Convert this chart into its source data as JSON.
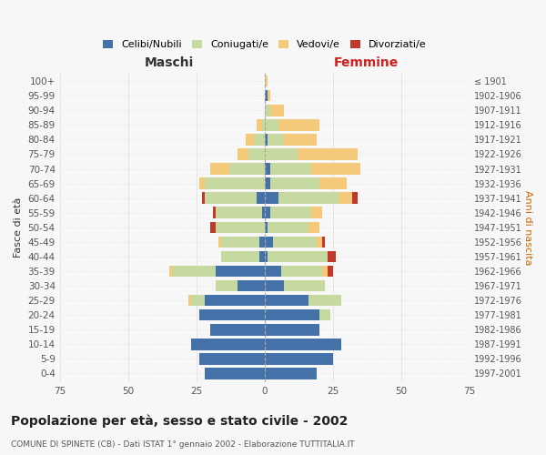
{
  "age_groups": [
    "0-4",
    "5-9",
    "10-14",
    "15-19",
    "20-24",
    "25-29",
    "30-34",
    "35-39",
    "40-44",
    "45-49",
    "50-54",
    "55-59",
    "60-64",
    "65-69",
    "70-74",
    "75-79",
    "80-84",
    "85-89",
    "90-94",
    "95-99",
    "100+"
  ],
  "birth_years": [
    "1997-2001",
    "1992-1996",
    "1987-1991",
    "1982-1986",
    "1977-1981",
    "1972-1976",
    "1967-1971",
    "1962-1966",
    "1957-1961",
    "1952-1956",
    "1947-1951",
    "1942-1946",
    "1937-1941",
    "1932-1936",
    "1927-1931",
    "1922-1926",
    "1917-1921",
    "1912-1916",
    "1907-1911",
    "1902-1906",
    "≤ 1901"
  ],
  "males": {
    "celibi": [
      22,
      24,
      27,
      20,
      24,
      22,
      10,
      18,
      2,
      2,
      0,
      1,
      3,
      0,
      0,
      0,
      0,
      0,
      0,
      0,
      0
    ],
    "coniugati": [
      0,
      0,
      0,
      0,
      0,
      5,
      8,
      16,
      14,
      14,
      18,
      17,
      19,
      22,
      13,
      6,
      4,
      1,
      0,
      0,
      0
    ],
    "vedovi": [
      0,
      0,
      0,
      0,
      0,
      1,
      0,
      1,
      0,
      1,
      0,
      0,
      0,
      2,
      7,
      4,
      3,
      2,
      0,
      0,
      0
    ],
    "divorziati": [
      0,
      0,
      0,
      0,
      0,
      0,
      0,
      0,
      0,
      0,
      2,
      1,
      1,
      0,
      0,
      0,
      0,
      0,
      0,
      0,
      0
    ]
  },
  "females": {
    "nubili": [
      19,
      25,
      28,
      20,
      20,
      16,
      7,
      6,
      1,
      3,
      1,
      2,
      5,
      2,
      2,
      0,
      1,
      0,
      0,
      1,
      0
    ],
    "coniugate": [
      0,
      0,
      0,
      0,
      4,
      12,
      15,
      15,
      22,
      16,
      15,
      15,
      22,
      18,
      15,
      12,
      6,
      5,
      2,
      0,
      0
    ],
    "vedove": [
      0,
      0,
      0,
      0,
      0,
      0,
      0,
      2,
      0,
      2,
      4,
      4,
      5,
      10,
      18,
      22,
      12,
      15,
      5,
      1,
      1
    ],
    "divorziate": [
      0,
      0,
      0,
      0,
      0,
      0,
      0,
      2,
      3,
      1,
      0,
      0,
      2,
      0,
      0,
      0,
      0,
      0,
      0,
      0,
      0
    ]
  },
  "colors": {
    "celibi": "#4472a8",
    "coniugati": "#c5d9a0",
    "vedovi": "#f5c97a",
    "divorziati": "#c0392b"
  },
  "xlim": 75,
  "title": "Popolazione per età, sesso e stato civile - 2002",
  "subtitle": "COMUNE DI SPINETE (CB) - Dati ISTAT 1° gennaio 2002 - Elaborazione TUTTITALIA.IT",
  "xlabel_left": "Maschi",
  "xlabel_right": "Femmine",
  "ylabel_left": "Fasce di età",
  "ylabel_right": "Anni di nascita",
  "maschi_color": "#333333",
  "femmine_color": "#cc2222",
  "anni_color": "#cc6600",
  "bg_color": "#f7f7f7",
  "grid_color": "#dddddd",
  "title_fontsize": 10,
  "subtitle_fontsize": 6.5
}
